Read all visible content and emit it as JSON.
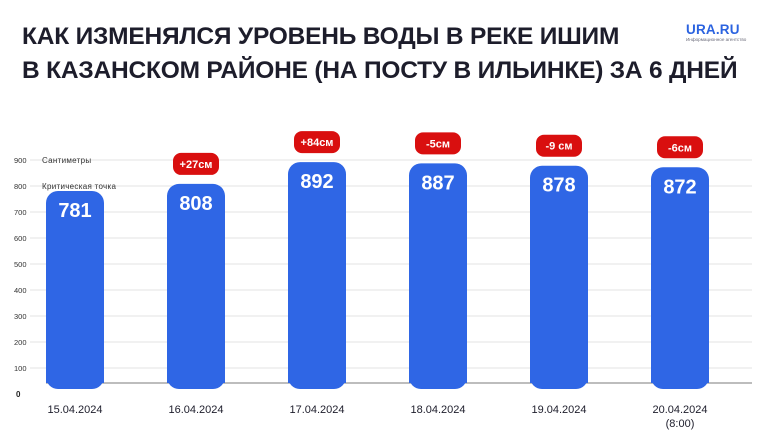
{
  "header": {
    "title_line1": "КАК ИЗМЕНЯЛСЯ УРОВЕНЬ ВОДЫ В РЕКЕ ИШИМ",
    "title_line2": "В КАЗАНСКОМ РАЙОНЕ (НА ПОСТУ В ИЛЬИНКЕ) ЗА 6 ДНЕЙ"
  },
  "logo": {
    "name": "URA.RU",
    "subtitle": "Информационное агентство"
  },
  "colors": {
    "bar": "#2f66e5",
    "badge": "#d90f0f",
    "grid": "#c8c8c8",
    "text": "#1d1d2b"
  },
  "chart_data": {
    "type": "bar",
    "categories": [
      "15.04.2024",
      "16.04.2024",
      "17.04.2024",
      "18.04.2024",
      "19.04.2024",
      "20.04.2024"
    ],
    "category_notes": [
      "",
      "",
      "",
      "",
      "",
      "(8:00)"
    ],
    "values": [
      781,
      808,
      892,
      887,
      878,
      872
    ],
    "value_labels": [
      "781",
      "808",
      "892",
      "887",
      "878",
      "872"
    ],
    "changes": [
      "",
      "+27см",
      "+84см",
      "-5см",
      "-9 см",
      "-6см"
    ],
    "yticks": [
      0,
      100,
      200,
      300,
      400,
      500,
      600,
      700,
      800,
      900
    ],
    "ylim": [
      0,
      900
    ],
    "grid": true,
    "reference_lines": [
      {
        "value": 900,
        "label": "Сантиметры"
      },
      {
        "value": 800,
        "label": "Критическая точка"
      }
    ]
  }
}
